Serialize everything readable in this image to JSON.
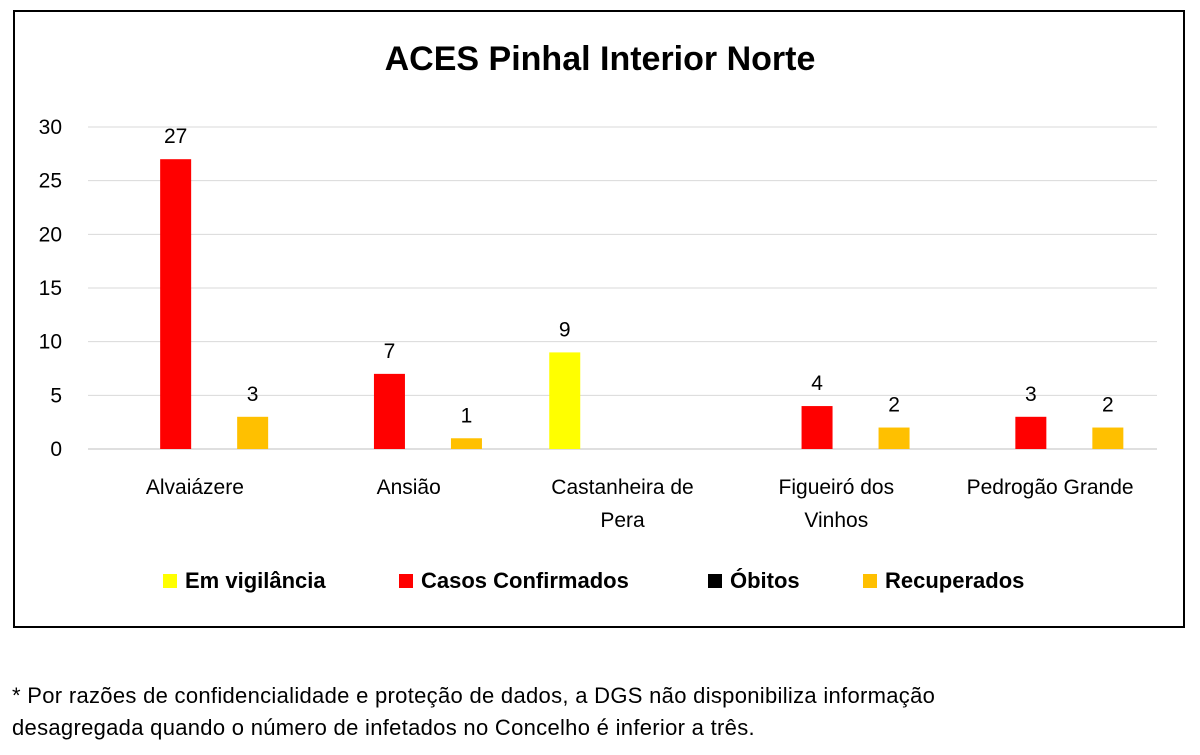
{
  "chart_data": {
    "type": "bar",
    "title": "ACES Pinhal Interior Norte",
    "categories": [
      "Alvaiázere",
      "Ansião",
      "Castanheira de Pera",
      "Figueiró dos Vinhos",
      "Pedrogão Grande"
    ],
    "category_lines": [
      [
        "Alvaiázere"
      ],
      [
        "Ansião"
      ],
      [
        "Castanheira de",
        "Pera"
      ],
      [
        "Figueiró dos",
        "Vinhos"
      ],
      [
        "Pedrogão Grande"
      ]
    ],
    "series": [
      {
        "name": "Em vigilância",
        "color": "#FFFF00",
        "values": [
          null,
          null,
          9,
          null,
          null
        ]
      },
      {
        "name": "Casos Confirmados",
        "color": "#FF0000",
        "values": [
          27,
          7,
          null,
          4,
          3
        ]
      },
      {
        "name": "Óbitos",
        "color": "#000000",
        "values": [
          null,
          null,
          null,
          null,
          null
        ]
      },
      {
        "name": "Recuperados",
        "color": "#FFC000",
        "values": [
          3,
          1,
          null,
          2,
          2
        ]
      }
    ],
    "ylim": [
      0,
      30
    ],
    "yticks": [
      "0",
      "5",
      "10",
      "15",
      "20",
      "25",
      "30"
    ],
    "grid": true,
    "legend_position": "bottom"
  },
  "footnote": {
    "line1": "* Por razões de confidencialidade e proteção de dados, a DGS não disponibiliza informação",
    "line2": "desagregada quando o número de infetados no Concelho é inferior a três."
  }
}
